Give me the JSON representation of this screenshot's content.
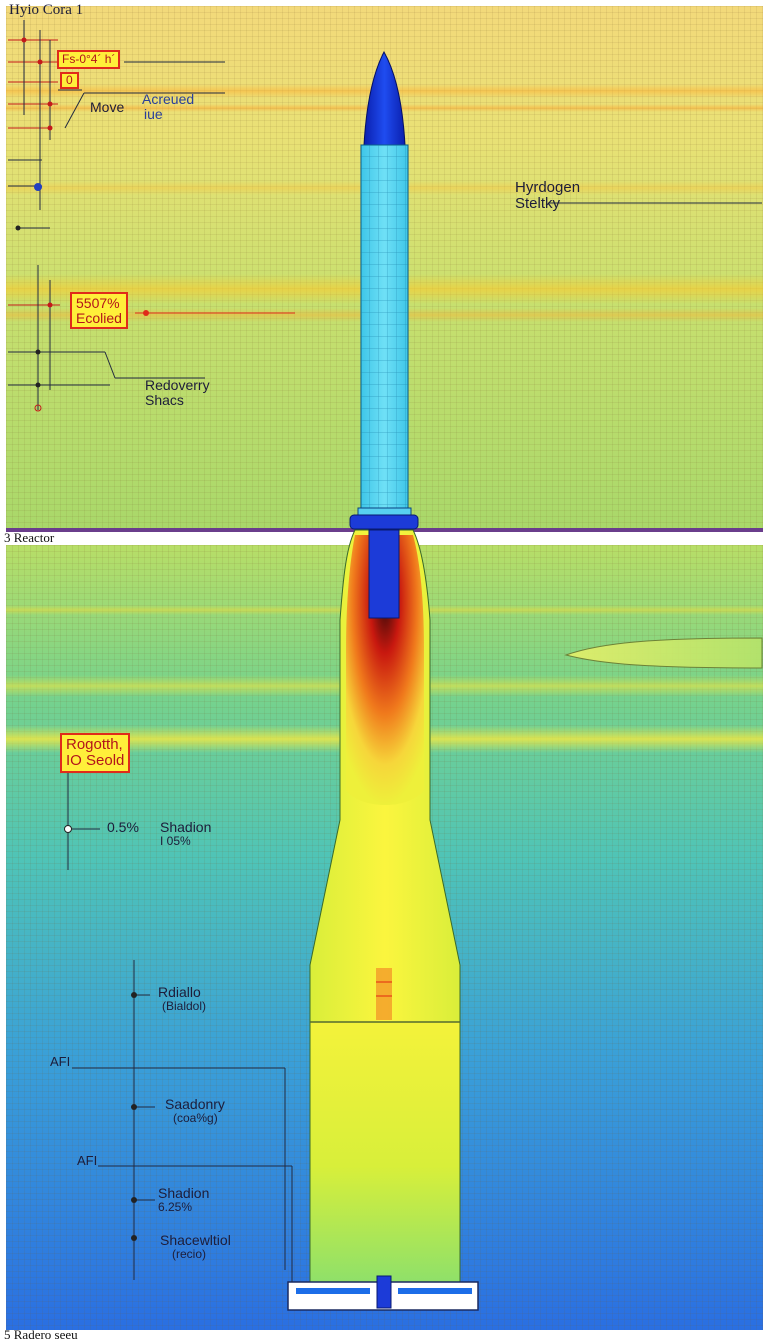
{
  "top_panel": {
    "title": "Hyio Cora 1",
    "corner_box_1": "Fs-0°4´ h´",
    "corner_box_2": "0",
    "move_label": "Move",
    "accrued_label_line1": "Acreued",
    "accrued_label_line2": "iue",
    "hydrogen_label_line1": "Hyrdogen",
    "hydrogen_label_line2": "Steltky",
    "ecolied_box_line1": "5507%",
    "ecolied_box_line2": "Ecolied",
    "recovery_label_line1": "Redoverry",
    "recovery_label_line2": "Shacs"
  },
  "reactor_caption": "3 Reactor",
  "bottom_panel": {
    "regolith_box_line1": "Rogotth,",
    "regolith_box_line2": "IO Seold",
    "shadion_1_value": "0.5%",
    "shadion_1_line1": "Shadion",
    "shadion_1_line2": "I 05%",
    "radiation_line1": "Rdiallo",
    "radiation_line2": "(Bialdol)",
    "af_label_1": "AFI",
    "shadowy_line1": "Saadonry",
    "shadowy_line2": "(coa%g)",
    "af_label_2": "AFI",
    "shadion_2_line1": "Shadion",
    "shadion_2_line2": "6.25%",
    "shielded_line1": "Shacewltiol",
    "shielded_line2": "(recio)"
  },
  "bottom_caption": "5 Radero seeu",
  "colors": {
    "nose_cone": "#1030d8",
    "upper_body": "#56d6f0",
    "core_hot": "#d01a1a",
    "nozzle_yellow": "#f0f03a",
    "annotation_red": "#e02b1a",
    "label_box": "#ffef3a"
  }
}
